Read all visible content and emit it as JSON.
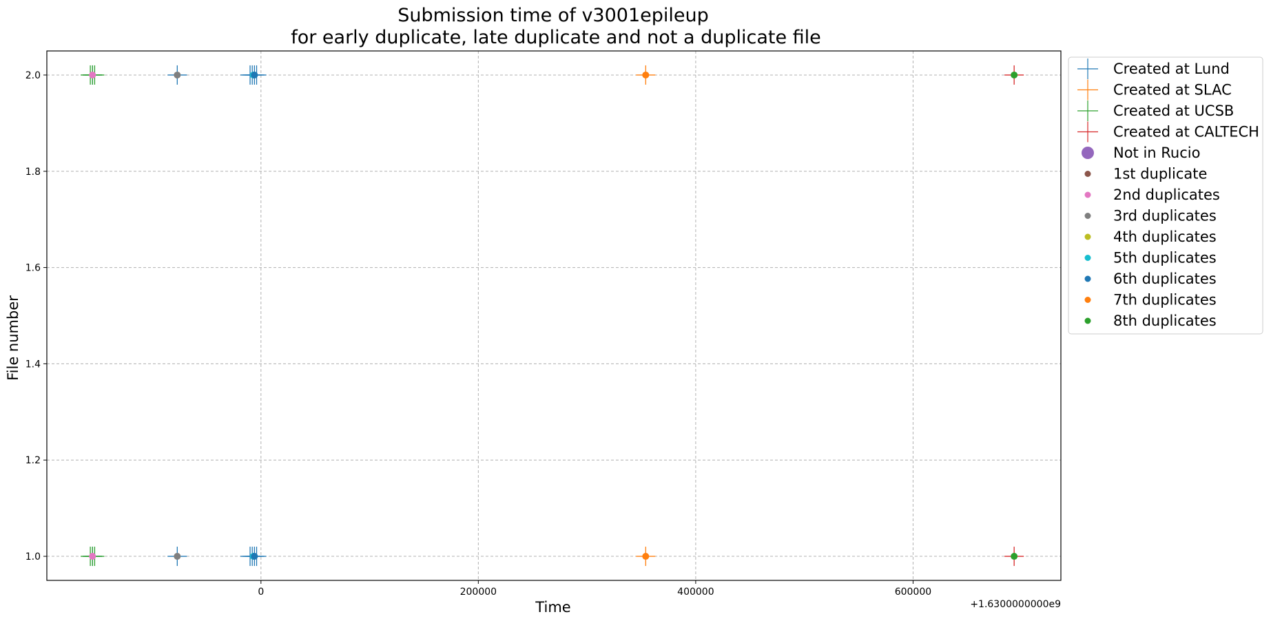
{
  "chart_data": {
    "type": "scatter",
    "title": "Submission time of v3001epileup",
    "subtitle": "for early duplicate, late duplicate and not a duplicate file",
    "xlabel": "Time",
    "ylabel": "File number",
    "x_offset_label": "+1.6300000000e9",
    "xlim": [
      -197000,
      736000
    ],
    "ylim": [
      0.95,
      2.05
    ],
    "x_ticks": [
      0,
      200000,
      400000,
      600000
    ],
    "x_tick_labels": [
      "0",
      "200000",
      "400000",
      "600000"
    ],
    "y_ticks": [
      1.0,
      1.2,
      1.4,
      1.6,
      1.8,
      2.0
    ],
    "y_tick_labels": [
      "1.0",
      "1.2",
      "1.4",
      "1.6",
      "1.8",
      "2.0"
    ],
    "grid": true,
    "legend_position": "outside-right-top",
    "series": [
      {
        "name": "Created at Lund",
        "marker": "plus",
        "color": "#1f77b4",
        "points": [
          [
            -155000,
            1
          ],
          [
            -155000,
            2
          ],
          [
            -77000,
            1
          ],
          [
            -77000,
            2
          ],
          [
            -8000,
            1
          ],
          [
            -8000,
            2
          ],
          [
            -6000,
            1
          ],
          [
            -6000,
            2
          ],
          [
            -4000,
            1
          ],
          [
            -4000,
            2
          ],
          [
            -10000,
            1
          ],
          [
            -10000,
            2
          ]
        ]
      },
      {
        "name": "Created at SLAC",
        "marker": "plus",
        "color": "#ff7f0e",
        "points": [
          [
            354000,
            1
          ],
          [
            354000,
            2
          ]
        ]
      },
      {
        "name": "Created at UCSB",
        "marker": "plus",
        "color": "#2ca02c",
        "points": [
          [
            -155000,
            1
          ],
          [
            -155000,
            2
          ],
          [
            -157000,
            1
          ],
          [
            -157000,
            2
          ],
          [
            -153000,
            1
          ],
          [
            -153000,
            2
          ]
        ]
      },
      {
        "name": "Created at CALTECH",
        "marker": "plus",
        "color": "#d62728",
        "points": [
          [
            693000,
            1
          ],
          [
            693000,
            2
          ]
        ]
      },
      {
        "name": "Not in Rucio",
        "marker": "big-dot",
        "color": "#9467bd",
        "points": []
      },
      {
        "name": "1st duplicate",
        "marker": "dot",
        "color": "#8c564b",
        "points": []
      },
      {
        "name": "2nd duplicates",
        "marker": "dot",
        "color": "#e377c2",
        "points": [
          [
            -155000,
            1
          ],
          [
            -155000,
            2
          ]
        ]
      },
      {
        "name": "3rd duplicates",
        "marker": "dot",
        "color": "#7f7f7f",
        "points": [
          [
            -77000,
            1
          ],
          [
            -77000,
            2
          ]
        ]
      },
      {
        "name": "4th duplicates",
        "marker": "dot",
        "color": "#bcbd22",
        "points": []
      },
      {
        "name": "5th duplicates",
        "marker": "dot",
        "color": "#17becf",
        "points": [
          [
            -7000,
            1
          ],
          [
            -7000,
            2
          ]
        ]
      },
      {
        "name": "6th duplicates",
        "marker": "dot",
        "color": "#1f77b4",
        "points": [
          [
            -6000,
            1
          ],
          [
            -6000,
            2
          ]
        ]
      },
      {
        "name": "7th duplicates",
        "marker": "dot",
        "color": "#ff7f0e",
        "points": [
          [
            354000,
            1
          ],
          [
            354000,
            2
          ]
        ]
      },
      {
        "name": "8th duplicates",
        "marker": "dot",
        "color": "#2ca02c",
        "points": [
          [
            693000,
            1
          ],
          [
            693000,
            2
          ]
        ]
      }
    ]
  }
}
